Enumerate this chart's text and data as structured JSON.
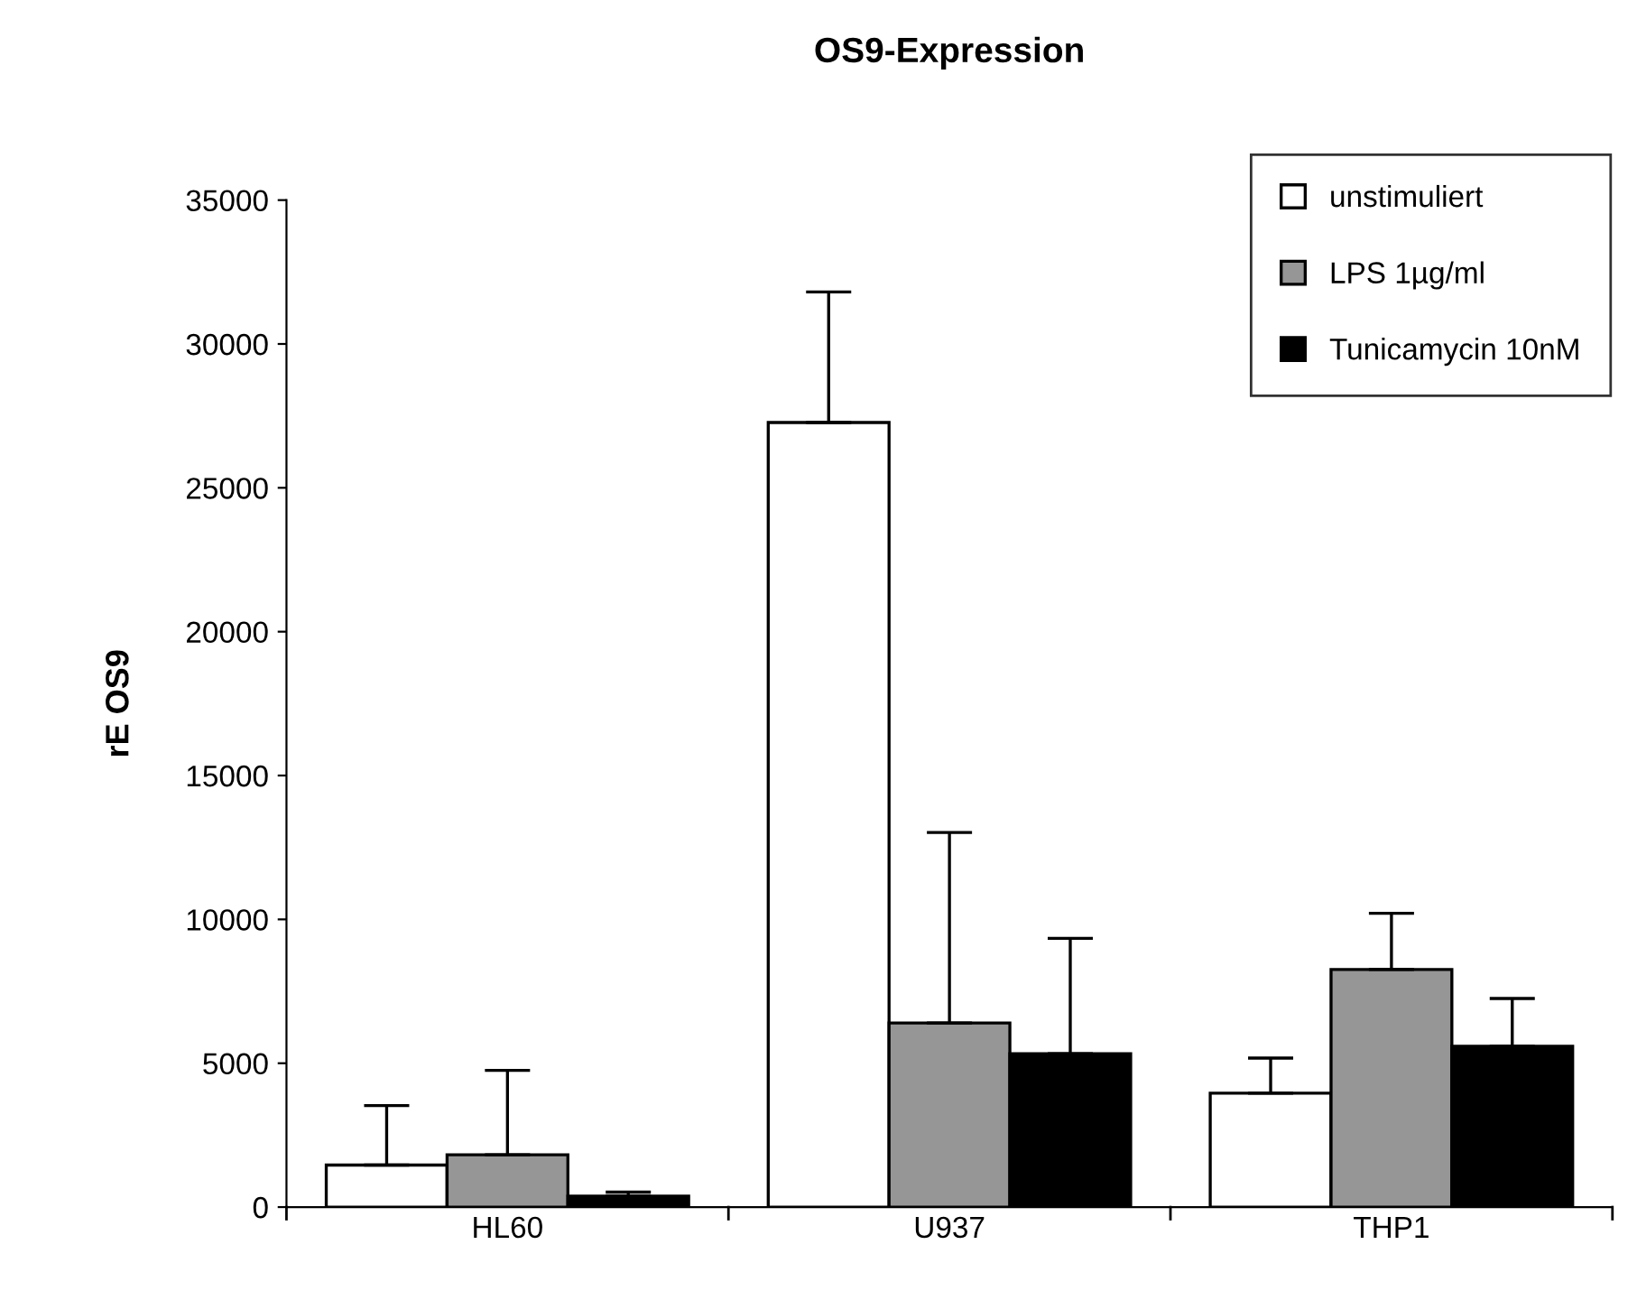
{
  "chart_data": {
    "type": "bar",
    "title": "OS9-Expression",
    "ylabel": "rE OS9",
    "categories": [
      "HL60",
      "U937",
      "THP1"
    ],
    "series": [
      {
        "name": "unstimuliert",
        "color": "#ffffff",
        "values": [
          1460,
          27270,
          3960
        ],
        "errors": [
          2070,
          4540,
          1220
        ]
      },
      {
        "name": "LPS 1µg/ml",
        "color": "#969696",
        "values": [
          1820,
          6400,
          8260
        ],
        "errors": [
          2930,
          6620,
          1950
        ]
      },
      {
        "name": "Tunicamycin 10nM",
        "color": "#000000",
        "values": [
          380,
          5330,
          5590
        ],
        "errors": [
          140,
          4010,
          1660
        ]
      }
    ],
    "ylim": [
      0,
      35000
    ],
    "yticks": [
      0,
      5000,
      10000,
      15000,
      20000,
      25000,
      30000,
      35000
    ],
    "grid": false,
    "legend": "top right"
  }
}
